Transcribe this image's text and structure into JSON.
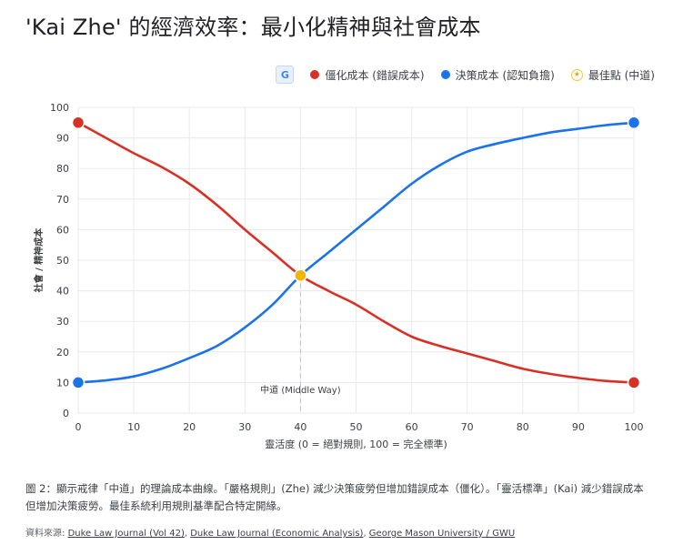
{
  "title": "'Kai Zhe' 的經濟效率：最小化精神與社會成本",
  "legend": {
    "translate_icon": "google-translate-icon",
    "items": [
      "僵化成本 (錯誤成本)",
      "決策成本 (認知負擔)",
      "最佳點 (中道)"
    ],
    "star_glyph": "★"
  },
  "colors": {
    "rigidity": "#d93025",
    "decision": "#1a73e8",
    "optimal": "#f4b400",
    "grid": "#e8eaed"
  },
  "chart_data": {
    "type": "line",
    "title": "'Kai Zhe' 的經濟效率：最小化精神與社會成本",
    "xlabel": "靈活度 (0 = 絕對規則, 100 = 完全標準)",
    "ylabel": "社會 / 精神成本",
    "xlim": [
      0,
      100
    ],
    "ylim": [
      0,
      100
    ],
    "xticks": [
      0,
      10,
      20,
      30,
      40,
      50,
      60,
      70,
      80,
      90,
      100
    ],
    "yticks": [
      0,
      10,
      20,
      30,
      40,
      50,
      60,
      70,
      80,
      90,
      100
    ],
    "series": [
      {
        "name": "僵化成本 (錯誤成本)",
        "x": [
          0,
          5,
          10,
          15,
          20,
          25,
          30,
          35,
          40,
          45,
          50,
          55,
          60,
          65,
          70,
          75,
          80,
          85,
          90,
          95,
          100
        ],
        "values": [
          95,
          90,
          85,
          80.5,
          75,
          68,
          60,
          52.5,
          45,
          40,
          35.5,
          30,
          25,
          22,
          19.5,
          17,
          14.5,
          12.8,
          11.5,
          10.5,
          10
        ]
      },
      {
        "name": "決策成本 (認知負擔)",
        "x": [
          0,
          5,
          10,
          15,
          20,
          25,
          30,
          35,
          40,
          45,
          50,
          55,
          60,
          65,
          70,
          75,
          80,
          85,
          90,
          95,
          100
        ],
        "values": [
          10,
          10.7,
          12,
          14.5,
          18,
          22,
          28,
          35.5,
          45,
          52.5,
          60,
          67.5,
          75,
          81,
          85.5,
          88,
          90,
          91.8,
          93,
          94.2,
          95
        ]
      }
    ],
    "optimal_point": {
      "name": "最佳點 (中道)",
      "x": 40,
      "y": 45
    },
    "annotation": "中道 (Middle Way)"
  },
  "caption": "圖 2：顯示戒律「中道」的理論成本曲線。「嚴格規則」(Zhe) 減少決策疲勞但增加錯誤成本（僵化）。「靈活標準」(Kai) 減少錯誤成本但增加決策疲勞。最佳系統利用規則基準配合特定開緣。",
  "source": {
    "label": "資料來源: ",
    "links": [
      "Duke Law Journal (Vol 42)",
      "Duke Law Journal (Economic Analysis)",
      "George Mason University / GWU"
    ]
  }
}
